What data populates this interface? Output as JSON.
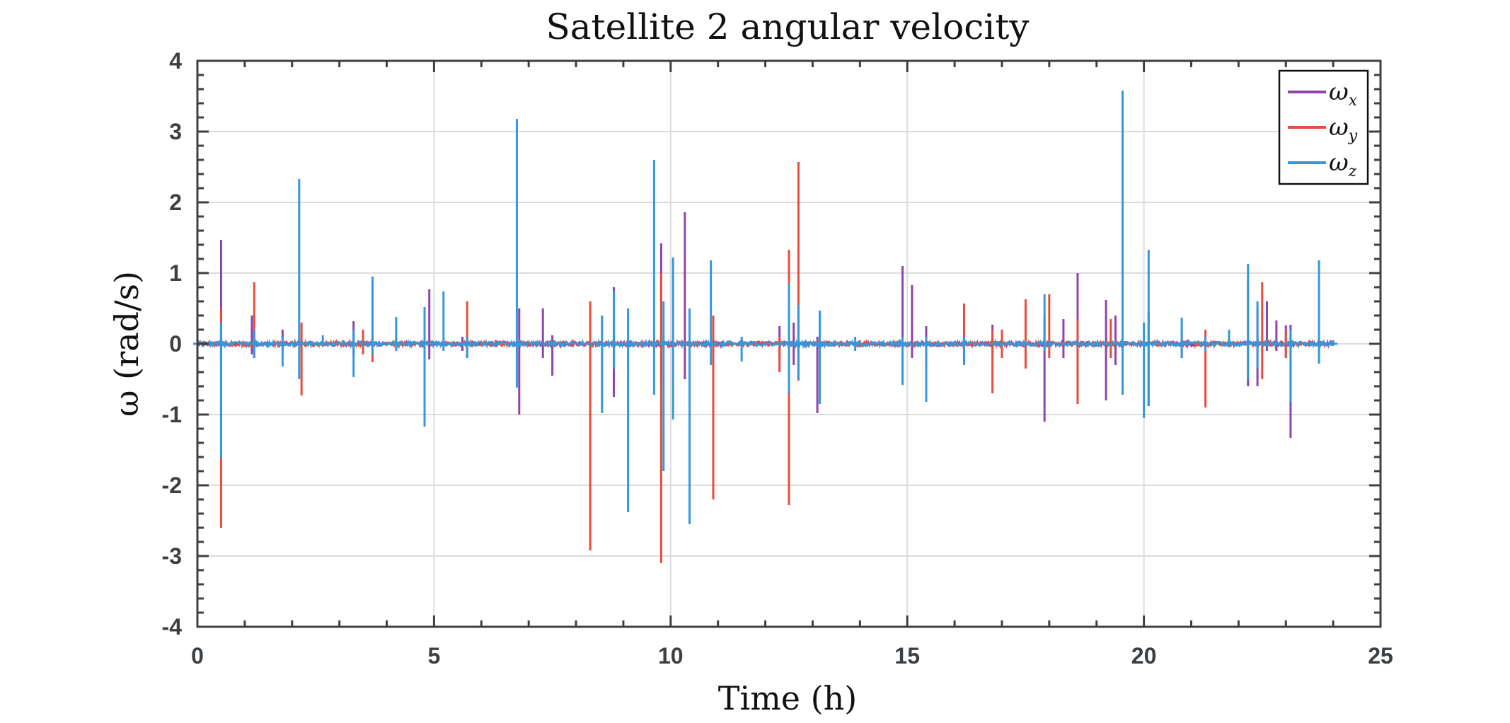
{
  "chart_data": {
    "type": "line",
    "title": "Satellite 2 angular velocity",
    "xlabel": "Time (h)",
    "ylabel": "ω (rad/s)",
    "xlim": [
      0,
      25
    ],
    "ylim": [
      -4,
      4
    ],
    "x_ticks": [
      0,
      5,
      10,
      15,
      20,
      25
    ],
    "y_ticks": [
      -4,
      -3,
      -2,
      -1,
      0,
      1,
      2,
      3,
      4
    ],
    "x_tick_labels": [
      "0",
      "5",
      "10",
      "15",
      "20",
      "25"
    ],
    "y_tick_labels": [
      "-4",
      "-3",
      "-2",
      "-1",
      "0",
      "1",
      "2",
      "3",
      "4"
    ],
    "grid": true,
    "legend_position": "top-right",
    "series": [
      {
        "name": "ωx",
        "color": "#8e44ad",
        "spikes": [
          [
            0.5,
            1.47,
            -0.25
          ],
          [
            1.15,
            0.4,
            -0.15
          ],
          [
            1.8,
            0.2,
            -0.1
          ],
          [
            3.3,
            0.32,
            -0.15
          ],
          [
            3.7,
            0.15,
            -0.2
          ],
          [
            4.9,
            0.77,
            -0.22
          ],
          [
            5.6,
            0.1,
            -0.1
          ],
          [
            6.8,
            0.5,
            -1.0
          ],
          [
            7.3,
            0.5,
            -0.2
          ],
          [
            7.5,
            0.12,
            -0.45
          ],
          [
            8.8,
            0.8,
            -0.75
          ],
          [
            9.8,
            1.42,
            -0.5
          ],
          [
            10.3,
            1.86,
            -0.5
          ],
          [
            12.3,
            0.25,
            -0.2
          ],
          [
            12.6,
            0.3,
            -0.3
          ],
          [
            13.1,
            0.1,
            -0.98
          ],
          [
            14.9,
            1.1,
            -0.2
          ],
          [
            15.1,
            0.83,
            -0.2
          ],
          [
            15.4,
            0.25,
            -0.4
          ],
          [
            16.2,
            0.15,
            -0.3
          ],
          [
            16.8,
            0.27,
            -0.15
          ],
          [
            17.9,
            0.4,
            -1.1
          ],
          [
            18.3,
            0.35,
            -0.2
          ],
          [
            18.6,
            1.0,
            -0.4
          ],
          [
            19.2,
            0.62,
            -0.8
          ],
          [
            19.4,
            0.4,
            -0.3
          ],
          [
            20.1,
            0.44,
            -0.88
          ],
          [
            20.8,
            0.2,
            -0.2
          ],
          [
            22.2,
            0.9,
            -0.6
          ],
          [
            22.4,
            0.5,
            -0.6
          ],
          [
            22.6,
            0.6,
            -0.1
          ],
          [
            22.8,
            0.33,
            -0.1
          ],
          [
            23.0,
            0.26,
            -0.2
          ],
          [
            23.1,
            0.27,
            -1.33
          ]
        ]
      },
      {
        "name": "ωy",
        "color": "#e74c3c",
        "spikes": [
          [
            0.0,
            0.65,
            -0.1
          ],
          [
            0.5,
            0.5,
            -2.6
          ],
          [
            1.2,
            0.87,
            -0.2
          ],
          [
            2.2,
            0.3,
            -0.73
          ],
          [
            3.5,
            0.2,
            -0.15
          ],
          [
            3.7,
            0.15,
            -0.26
          ],
          [
            5.7,
            0.6,
            -0.2
          ],
          [
            6.3,
            0.05,
            -0.05
          ],
          [
            8.3,
            0.6,
            -2.92
          ],
          [
            9.8,
            1.0,
            -3.1
          ],
          [
            10.9,
            0.4,
            -2.2
          ],
          [
            12.3,
            0.1,
            -0.4
          ],
          [
            12.5,
            1.33,
            -2.28
          ],
          [
            12.7,
            2.57,
            -0.52
          ],
          [
            14.0,
            0.05,
            -0.05
          ],
          [
            16.2,
            0.57,
            -0.2
          ],
          [
            16.8,
            0.2,
            -0.7
          ],
          [
            17.0,
            0.2,
            -0.2
          ],
          [
            17.5,
            0.63,
            -0.35
          ],
          [
            18.0,
            0.7,
            -0.2
          ],
          [
            18.6,
            0.35,
            -0.85
          ],
          [
            19.3,
            0.35,
            -0.2
          ],
          [
            21.3,
            0.2,
            -0.9
          ],
          [
            22.5,
            0.87,
            -0.5
          ],
          [
            23.0,
            0.2,
            -0.2
          ]
        ]
      },
      {
        "name": "ωz",
        "color": "#3498db",
        "spikes": [
          [
            0.0,
            0.45,
            -0.05
          ],
          [
            0.5,
            0.3,
            -1.62
          ],
          [
            1.2,
            0.2,
            -0.2
          ],
          [
            1.8,
            0.1,
            -0.32
          ],
          [
            2.15,
            2.33,
            -0.5
          ],
          [
            2.65,
            0.12,
            -0.02
          ],
          [
            3.3,
            0.2,
            -0.47
          ],
          [
            3.7,
            0.95,
            -0.15
          ],
          [
            4.2,
            0.38,
            -0.1
          ],
          [
            4.8,
            0.52,
            -1.17
          ],
          [
            5.2,
            0.74,
            -0.1
          ],
          [
            5.7,
            0.1,
            -0.2
          ],
          [
            6.75,
            3.18,
            -0.62
          ],
          [
            7.55,
            0.05,
            -0.05
          ],
          [
            8.55,
            0.4,
            -0.98
          ],
          [
            8.8,
            0.75,
            -0.35
          ],
          [
            9.1,
            0.5,
            -2.38
          ],
          [
            9.65,
            2.6,
            -0.72
          ],
          [
            9.85,
            0.6,
            -1.8
          ],
          [
            10.05,
            1.22,
            -1.07
          ],
          [
            10.4,
            0.5,
            -2.55
          ],
          [
            10.85,
            1.18,
            -0.3
          ],
          [
            11.5,
            0.1,
            -0.25
          ],
          [
            12.5,
            0.85,
            -0.7
          ],
          [
            12.7,
            0.55,
            -0.5
          ],
          [
            13.15,
            0.47,
            -0.85
          ],
          [
            13.9,
            0.1,
            -0.1
          ],
          [
            14.9,
            0.1,
            -0.58
          ],
          [
            15.4,
            0.1,
            -0.82
          ],
          [
            16.2,
            0.1,
            -0.3
          ],
          [
            17.9,
            0.7,
            -0.1
          ],
          [
            19.55,
            3.58,
            -0.72
          ],
          [
            20.0,
            0.3,
            -1.05
          ],
          [
            20.1,
            1.33,
            -0.87
          ],
          [
            20.8,
            0.37,
            -0.2
          ],
          [
            21.3,
            0.1,
            -0.1
          ],
          [
            21.8,
            0.2,
            -0.05
          ],
          [
            22.2,
            1.13,
            -0.5
          ],
          [
            22.4,
            0.6,
            -0.35
          ],
          [
            23.1,
            0.2,
            -0.82
          ],
          [
            23.7,
            1.18,
            -0.28
          ],
          [
            24.0,
            0.05,
            -0.03
          ]
        ]
      }
    ]
  }
}
